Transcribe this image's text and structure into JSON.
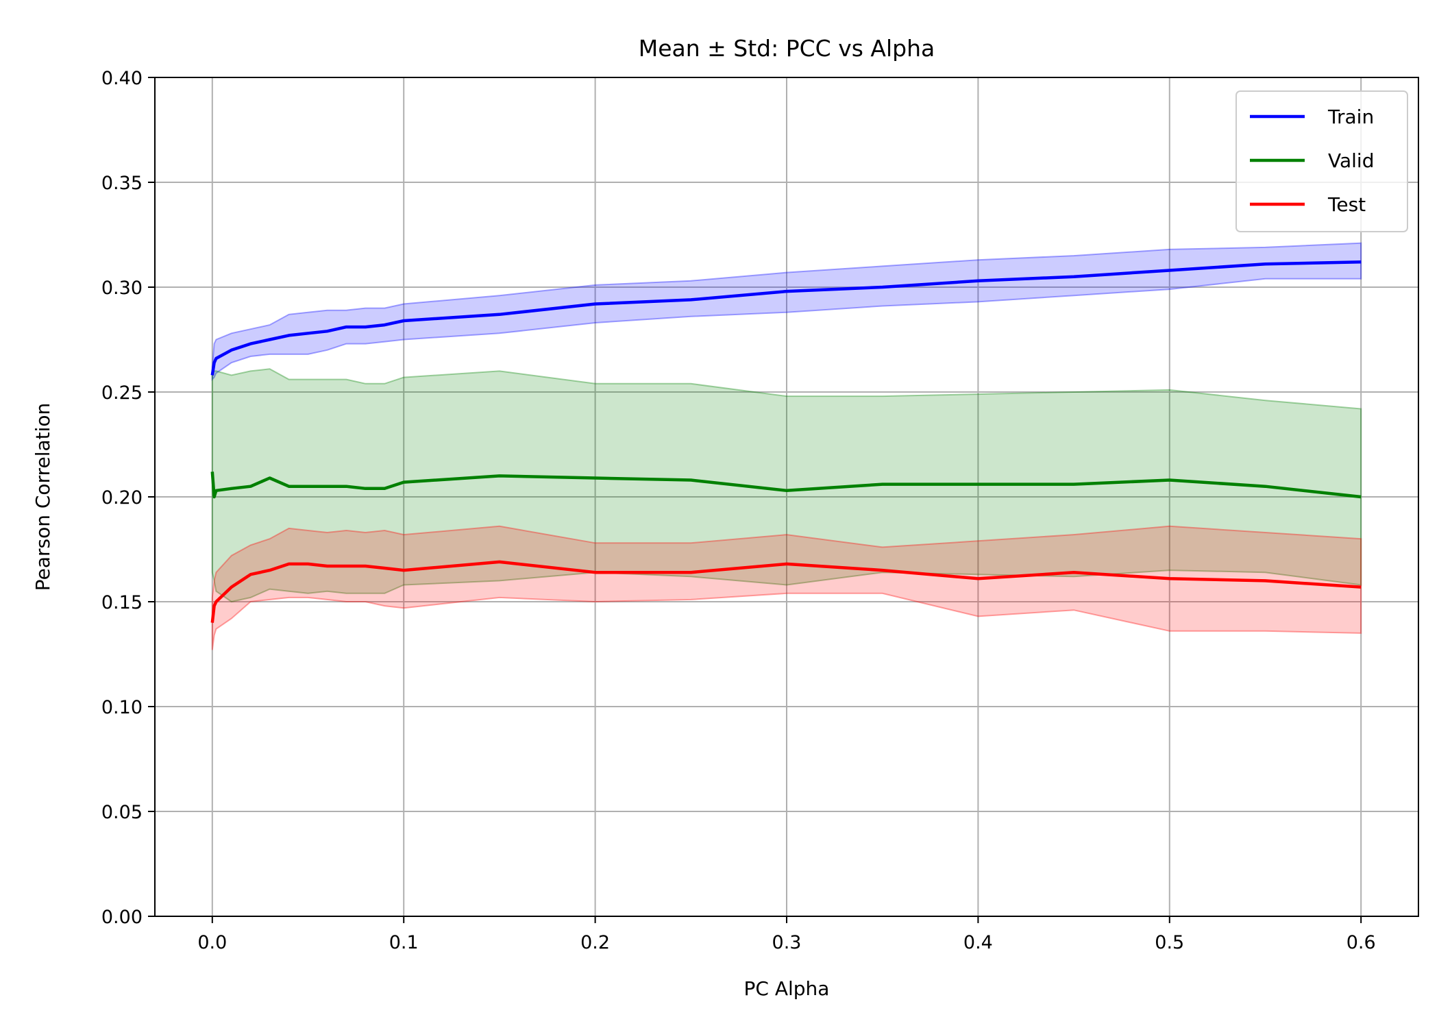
{
  "chart_data": {
    "type": "line",
    "title": "Mean ± Std: PCC vs Alpha",
    "xlabel": "PC Alpha",
    "ylabel": "Pearson Correlation",
    "xlim": [
      -0.03,
      0.63
    ],
    "ylim": [
      0.0,
      0.4
    ],
    "xticks": [
      0.0,
      0.1,
      0.2,
      0.3,
      0.4,
      0.5,
      0.6
    ],
    "xtick_labels": [
      "0.0",
      "0.1",
      "0.2",
      "0.3",
      "0.4",
      "0.5",
      "0.6"
    ],
    "yticks": [
      0.0,
      0.05,
      0.1,
      0.15,
      0.2,
      0.25,
      0.3,
      0.35,
      0.4
    ],
    "ytick_labels": [
      "0.00",
      "0.05",
      "0.10",
      "0.15",
      "0.20",
      "0.25",
      "0.30",
      "0.35",
      "0.40"
    ],
    "grid": true,
    "legend_position": "top-right",
    "x": [
      0.0,
      0.001,
      0.002,
      0.01,
      0.02,
      0.03,
      0.04,
      0.05,
      0.06,
      0.07,
      0.08,
      0.09,
      0.1,
      0.15,
      0.2,
      0.25,
      0.3,
      0.35,
      0.4,
      0.45,
      0.5,
      0.55,
      0.6
    ],
    "series": [
      {
        "name": "Train",
        "color": "#0000ff",
        "fill": "rgba(0,0,255,0.2)",
        "fill_edge": "rgba(0,0,255,0.35)",
        "mean": [
          0.258,
          0.264,
          0.266,
          0.27,
          0.273,
          0.275,
          0.277,
          0.278,
          0.279,
          0.281,
          0.281,
          0.282,
          0.284,
          0.287,
          0.292,
          0.294,
          0.298,
          0.3,
          0.303,
          0.305,
          0.308,
          0.311,
          0.312
        ],
        "upper": [
          0.262,
          0.273,
          0.275,
          0.278,
          0.28,
          0.282,
          0.287,
          0.288,
          0.289,
          0.289,
          0.29,
          0.29,
          0.292,
          0.296,
          0.301,
          0.303,
          0.307,
          0.31,
          0.313,
          0.315,
          0.318,
          0.319,
          0.321
        ],
        "lower": [
          0.256,
          0.257,
          0.259,
          0.264,
          0.267,
          0.268,
          0.268,
          0.268,
          0.27,
          0.273,
          0.273,
          0.274,
          0.275,
          0.278,
          0.283,
          0.286,
          0.288,
          0.291,
          0.293,
          0.296,
          0.299,
          0.304,
          0.304
        ]
      },
      {
        "name": "Valid",
        "color": "#008000",
        "fill": "rgba(0,128,0,0.2)",
        "fill_edge": "rgba(0,128,0,0.35)",
        "mean": [
          0.212,
          0.2,
          0.203,
          0.204,
          0.205,
          0.209,
          0.205,
          0.205,
          0.205,
          0.205,
          0.204,
          0.204,
          0.207,
          0.21,
          0.209,
          0.208,
          0.203,
          0.206,
          0.206,
          0.206,
          0.208,
          0.205,
          0.2
        ],
        "upper": [
          0.26,
          0.26,
          0.26,
          0.258,
          0.26,
          0.261,
          0.256,
          0.256,
          0.256,
          0.256,
          0.254,
          0.254,
          0.257,
          0.26,
          0.254,
          0.254,
          0.248,
          0.248,
          0.249,
          0.25,
          0.251,
          0.246,
          0.242
        ],
        "lower": [
          0.164,
          0.16,
          0.155,
          0.15,
          0.152,
          0.156,
          0.155,
          0.154,
          0.155,
          0.154,
          0.154,
          0.154,
          0.158,
          0.16,
          0.164,
          0.162,
          0.158,
          0.164,
          0.163,
          0.162,
          0.165,
          0.164,
          0.158
        ]
      },
      {
        "name": "Test",
        "color": "#ff0000",
        "fill": "rgba(255,0,0,0.2)",
        "fill_edge": "rgba(255,0,0,0.35)",
        "mean": [
          0.14,
          0.148,
          0.15,
          0.157,
          0.163,
          0.165,
          0.168,
          0.168,
          0.167,
          0.167,
          0.167,
          0.166,
          0.165,
          0.169,
          0.164,
          0.164,
          0.168,
          0.165,
          0.161,
          0.164,
          0.161,
          0.16,
          0.157
        ],
        "upper": [
          0.152,
          0.16,
          0.164,
          0.172,
          0.177,
          0.18,
          0.185,
          0.184,
          0.183,
          0.184,
          0.183,
          0.184,
          0.182,
          0.186,
          0.178,
          0.178,
          0.182,
          0.176,
          0.179,
          0.182,
          0.186,
          0.183,
          0.18
        ],
        "lower": [
          0.127,
          0.134,
          0.137,
          0.142,
          0.15,
          0.151,
          0.152,
          0.152,
          0.151,
          0.15,
          0.15,
          0.148,
          0.147,
          0.152,
          0.15,
          0.151,
          0.154,
          0.154,
          0.143,
          0.146,
          0.136,
          0.136,
          0.135
        ]
      }
    ]
  }
}
